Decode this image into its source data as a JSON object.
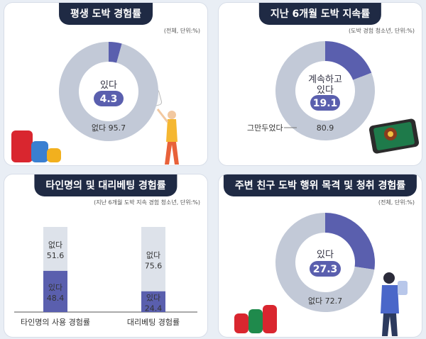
{
  "panels": [
    {
      "title": "평생 도박 경험률",
      "note": "(전체, 단위:%)"
    },
    {
      "title": "지난 6개월 도박 지속률",
      "note": "(도박 경험 청소년, 단위:%)"
    },
    {
      "title": "타인명의 및 대리베팅 경험률",
      "note": "(지난 6개월 도박 지속 경험 청소년, 단위:%)"
    },
    {
      "title": "주변 친구 도박 행위 목격 및 청취 경험률",
      "note": "(전체, 단위:%)"
    }
  ],
  "colors": {
    "yes": "#5a5fae",
    "no": "#c2c9d7",
    "title_bg": "#1f2a44"
  },
  "chart_data": [
    {
      "type": "pie",
      "title": "평생 도박 경험률",
      "slices": [
        {
          "label": "있다",
          "value": 4.3,
          "value_text": "4.3"
        },
        {
          "label": "없다",
          "value": 95.7,
          "value_text": "95.7"
        }
      ]
    },
    {
      "type": "pie",
      "title": "지난 6개월 도박 지속률",
      "slices": [
        {
          "label": "계속하고 있다",
          "value": 19.1,
          "value_text": "19.1"
        },
        {
          "label": "그만두었다",
          "value": 80.9,
          "value_text": "80.9"
        }
      ]
    },
    {
      "type": "bar",
      "title": "타인명의 및 대리베팅 경험률",
      "categories": [
        "타인명의 사용 경험률",
        "대리베팅 경험률"
      ],
      "series": [
        {
          "name": "있다",
          "values": [
            48.4,
            24.4
          ],
          "value_texts": [
            "48.4",
            "24.4"
          ]
        },
        {
          "name": "없다",
          "values": [
            51.6,
            75.6
          ],
          "value_texts": [
            "51.6",
            "75.6"
          ]
        }
      ],
      "stacked": true,
      "ylim": [
        0,
        100
      ]
    },
    {
      "type": "pie",
      "title": "주변 친구 도박 행위 목격 및 청취 경험률",
      "slices": [
        {
          "label": "있다",
          "value": 27.3,
          "value_text": "27.3"
        },
        {
          "label": "없다",
          "value": 72.7,
          "value_text": "72.7"
        }
      ]
    }
  ]
}
